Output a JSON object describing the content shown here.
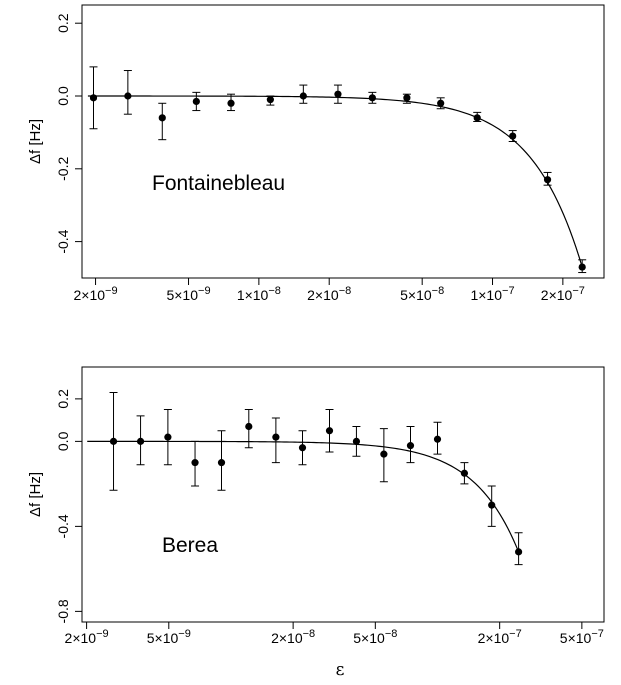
{
  "chart_data": [
    {
      "type": "scatter",
      "annotation": "Fontainebleau",
      "xlabel": "",
      "ylabel": "Δf [Hz]",
      "xscale": "log",
      "xlim": [
        1.75e-09,
        3e-07
      ],
      "ylim": [
        -0.5,
        0.25
      ],
      "yticks": [
        {
          "value": 0.2,
          "label": "0.2"
        },
        {
          "value": 0.0,
          "label": "0.0"
        },
        {
          "value": -0.2,
          "label": "-0.2"
        },
        {
          "value": -0.4,
          "label": "-0.4"
        }
      ],
      "xticks": [
        {
          "value": 2e-09,
          "mant": "2",
          "exp": "−9"
        },
        {
          "value": 5e-09,
          "mant": "5",
          "exp": "−9"
        },
        {
          "value": 1e-08,
          "mant": "1",
          "exp": "−8"
        },
        {
          "value": 2e-08,
          "mant": "2",
          "exp": "−8"
        },
        {
          "value": 5e-08,
          "mant": "5",
          "exp": "−8"
        },
        {
          "value": 1e-07,
          "mant": "1",
          "exp": "−7"
        },
        {
          "value": 2e-07,
          "mant": "2",
          "exp": "−7"
        }
      ],
      "points": [
        {
          "x": 1.96e-09,
          "y": -0.005,
          "lo": -0.09,
          "hi": 0.08
        },
        {
          "x": 2.75e-09,
          "y": 0.0,
          "lo": -0.05,
          "hi": 0.07
        },
        {
          "x": 3.86e-09,
          "y": -0.06,
          "lo": -0.12,
          "hi": -0.02
        },
        {
          "x": 5.4e-09,
          "y": -0.015,
          "lo": -0.04,
          "hi": 0.01
        },
        {
          "x": 7.6e-09,
          "y": -0.02,
          "lo": -0.04,
          "hi": 0.005
        },
        {
          "x": 1.12e-08,
          "y": -0.01,
          "lo": -0.025,
          "hi": 0.0
        },
        {
          "x": 1.55e-08,
          "y": 0.0,
          "lo": -0.02,
          "hi": 0.03
        },
        {
          "x": 2.18e-08,
          "y": 0.005,
          "lo": -0.02,
          "hi": 0.03
        },
        {
          "x": 3.06e-08,
          "y": -0.005,
          "lo": -0.02,
          "hi": 0.01
        },
        {
          "x": 4.3e-08,
          "y": -0.005,
          "lo": -0.02,
          "hi": 0.005
        },
        {
          "x": 6e-08,
          "y": -0.02,
          "lo": -0.035,
          "hi": -0.005
        },
        {
          "x": 8.6e-08,
          "y": -0.06,
          "lo": -0.07,
          "hi": -0.045
        },
        {
          "x": 1.22e-07,
          "y": -0.11,
          "lo": -0.125,
          "hi": -0.095
        },
        {
          "x": 1.72e-07,
          "y": -0.23,
          "lo": -0.245,
          "hi": -0.21
        },
        {
          "x": 2.42e-07,
          "y": -0.47,
          "lo": -0.485,
          "hi": -0.45
        }
      ],
      "fit": {
        "type": "power",
        "amplitude": -0.47,
        "x_ref": 2.42e-07,
        "exponent": 2
      }
    },
    {
      "type": "scatter",
      "annotation": "Berea",
      "xlabel": "ε",
      "ylabel": "Δf [Hz]",
      "xscale": "log",
      "xlim": [
        1.9e-09,
        6.4e-07
      ],
      "ylim": [
        -0.85,
        0.35
      ],
      "yticks": [
        {
          "value": 0.2,
          "label": "0.2"
        },
        {
          "value": 0.0,
          "label": "0.0"
        },
        {
          "value": -0.4,
          "label": "-0.4"
        },
        {
          "value": -0.8,
          "label": "-0.8"
        }
      ],
      "xticks": [
        {
          "value": 2e-09,
          "mant": "2",
          "exp": "−9"
        },
        {
          "value": 5e-09,
          "mant": "5",
          "exp": "−9"
        },
        {
          "value": 2e-08,
          "mant": "2",
          "exp": "−8"
        },
        {
          "value": 5e-08,
          "mant": "5",
          "exp": "−8"
        },
        {
          "value": 2e-07,
          "mant": "2",
          "exp": "−7"
        },
        {
          "value": 5e-07,
          "mant": "5",
          "exp": "−7"
        }
      ],
      "points": [
        {
          "x": 2.7e-09,
          "y": 0.0,
          "lo": -0.23,
          "hi": 0.23
        },
        {
          "x": 3.65e-09,
          "y": 0.0,
          "lo": -0.11,
          "hi": 0.12
        },
        {
          "x": 4.95e-09,
          "y": 0.02,
          "lo": -0.11,
          "hi": 0.15
        },
        {
          "x": 6.7e-09,
          "y": -0.1,
          "lo": -0.21,
          "hi": 0.0
        },
        {
          "x": 9e-09,
          "y": -0.1,
          "lo": -0.23,
          "hi": 0.05
        },
        {
          "x": 1.22e-08,
          "y": 0.07,
          "lo": -0.03,
          "hi": 0.15
        },
        {
          "x": 1.65e-08,
          "y": 0.02,
          "lo": -0.1,
          "hi": 0.11
        },
        {
          "x": 2.22e-08,
          "y": -0.03,
          "lo": -0.11,
          "hi": 0.05
        },
        {
          "x": 3e-08,
          "y": 0.05,
          "lo": -0.05,
          "hi": 0.15
        },
        {
          "x": 4.05e-08,
          "y": 0.0,
          "lo": -0.07,
          "hi": 0.07
        },
        {
          "x": 5.5e-08,
          "y": -0.06,
          "lo": -0.19,
          "hi": 0.06
        },
        {
          "x": 7.4e-08,
          "y": -0.02,
          "lo": -0.1,
          "hi": 0.07
        },
        {
          "x": 1e-07,
          "y": 0.01,
          "lo": -0.06,
          "hi": 0.09
        },
        {
          "x": 1.35e-07,
          "y": -0.15,
          "lo": -0.2,
          "hi": -0.1
        },
        {
          "x": 1.83e-07,
          "y": -0.3,
          "lo": -0.4,
          "hi": -0.21
        },
        {
          "x": 2.47e-07,
          "y": -0.52,
          "lo": -0.58,
          "hi": -0.43
        }
      ],
      "fit": {
        "type": "power",
        "amplitude": -0.52,
        "x_ref": 2.47e-07,
        "exponent": 2
      }
    }
  ]
}
